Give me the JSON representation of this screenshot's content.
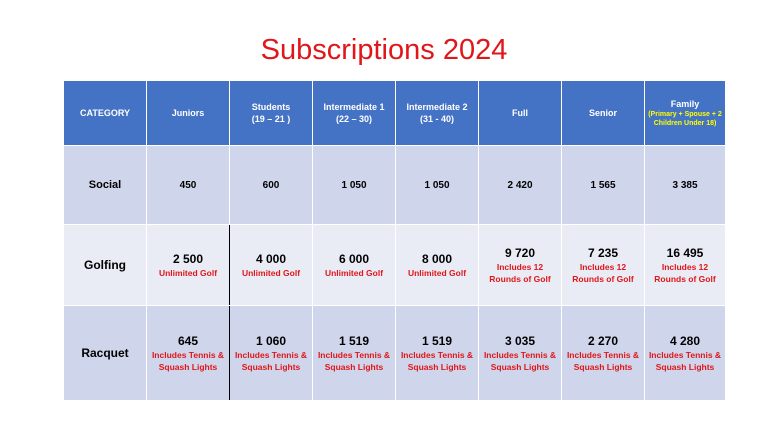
{
  "title": "Subscriptions 2024",
  "headers": {
    "category": "CATEGORY",
    "juniors": "Juniors",
    "students": "Students",
    "students_range": "(19 – 21 )",
    "intermediate1": "Intermediate 1",
    "intermediate1_range": "(22 – 30)",
    "intermediate2": "Intermediate 2",
    "intermediate2_range": "(31 - 40)",
    "full": "Full",
    "senior": "Senior",
    "family": "Family",
    "family_note": "(Primary + Spouse + 2 Children Under 18)"
  },
  "rows": {
    "social": {
      "label": "Social",
      "juniors": "450",
      "students": "600",
      "intermediate1": "1 050",
      "intermediate2": "1 050",
      "full": "2 420",
      "senior": "1 565",
      "family": "3 385"
    },
    "golfing": {
      "label": "Golfing",
      "juniors": "2 500",
      "juniors_note": "Unlimited Golf",
      "students": "4 000",
      "students_note": "Unlimited Golf",
      "intermediate1": "6 000",
      "intermediate1_note": "Unlimited Golf",
      "intermediate2": "8 000",
      "intermediate2_note": "Unlimited Golf",
      "full": "9 720",
      "full_note": "Includes 12 Rounds of Golf",
      "senior": "7 235",
      "senior_note": "Includes 12 Rounds of Golf",
      "family": "16 495",
      "family_note": "Includes 12 Rounds of Golf"
    },
    "racquet": {
      "label": "Racquet",
      "juniors": "645",
      "juniors_note": "Includes Tennis & Squash Lights",
      "students": "1 060",
      "students_note": "Includes Tennis & Squash Lights",
      "intermediate1": "1 519",
      "intermediate1_note": "Includes Tennis & Squash Lights",
      "intermediate2": "1 519",
      "intermediate2_note": "Includes Tennis & Squash Lights",
      "full": "3 035",
      "full_note": "Includes Tennis & Squash Lights",
      "senior": "2 270",
      "senior_note": "Includes Tennis & Squash Lights",
      "family": "4 280",
      "family_note": "Includes Tennis & Squash Lights"
    }
  },
  "colors": {
    "title": "#e0161a",
    "header_bg": "#4472c4",
    "family_note": "#ffff00",
    "row_dark": "#cfd5ea",
    "row_light": "#e9ebf5",
    "note_text": "#e0161a"
  }
}
